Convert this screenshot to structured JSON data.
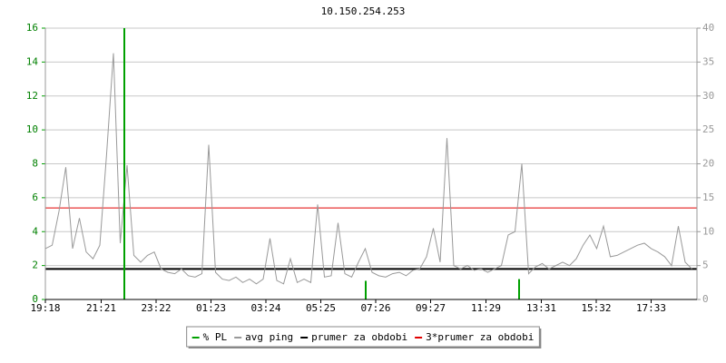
{
  "chart_data": {
    "type": "line",
    "title": "10.150.254.253",
    "xlim": [
      0,
      1436
    ],
    "xticks": [
      {
        "value": 0,
        "label": "19:18"
      },
      {
        "value": 123,
        "label": "21:21"
      },
      {
        "value": 244,
        "label": "23:22"
      },
      {
        "value": 365,
        "label": "01:23"
      },
      {
        "value": 486,
        "label": "03:24"
      },
      {
        "value": 607,
        "label": "05:25"
      },
      {
        "value": 728,
        "label": "07:26"
      },
      {
        "value": 849,
        "label": "09:27"
      },
      {
        "value": 971,
        "label": "11:29"
      },
      {
        "value": 1093,
        "label": "13:31"
      },
      {
        "value": 1214,
        "label": "15:32"
      },
      {
        "value": 1335,
        "label": "17:33"
      }
    ],
    "ylim": [
      0,
      16
    ],
    "yticks": [
      0,
      2,
      4,
      6,
      8,
      10,
      12,
      14,
      16
    ],
    "y2lim": [
      0,
      40
    ],
    "y2ticks": [
      0,
      5,
      10,
      15,
      20,
      25,
      30,
      35,
      40
    ],
    "grid": true,
    "series": [
      {
        "name": "% PL",
        "color": "#00a000",
        "axis": "y",
        "mark": "impulse",
        "x": [
          174,
          706,
          1044
        ],
        "values": [
          16,
          1.1,
          1.2
        ]
      },
      {
        "name": "avg ping",
        "color": "#999999",
        "axis": "y2",
        "mark": "line",
        "x": [
          0,
          15,
          30,
          45,
          60,
          75,
          90,
          105,
          120,
          135,
          150,
          165,
          180,
          195,
          210,
          225,
          240,
          255,
          270,
          285,
          300,
          315,
          330,
          345,
          360,
          375,
          390,
          405,
          420,
          435,
          450,
          465,
          480,
          495,
          510,
          525,
          540,
          555,
          570,
          585,
          600,
          615,
          630,
          645,
          660,
          675,
          690,
          705,
          720,
          735,
          750,
          765,
          780,
          795,
          810,
          825,
          840,
          855,
          870,
          885,
          900,
          915,
          930,
          945,
          960,
          975,
          990,
          1005,
          1020,
          1035,
          1050,
          1065,
          1080,
          1095,
          1110,
          1125,
          1140,
          1155,
          1170,
          1185,
          1200,
          1215,
          1230,
          1245,
          1260,
          1275,
          1290,
          1305,
          1320,
          1335,
          1350,
          1365,
          1380,
          1395,
          1410,
          1425
        ],
        "values": [
          7.5,
          8,
          13,
          19.5,
          7.5,
          12,
          7,
          6,
          8,
          21.5,
          36.3,
          8.3,
          19.8,
          6.5,
          5.5,
          6.5,
          7,
          4.5,
          4,
          3.8,
          4.5,
          3.5,
          3.3,
          3.8,
          22.8,
          4,
          3,
          2.8,
          3.3,
          2.5,
          3,
          2.3,
          3,
          9,
          2.8,
          2.3,
          6,
          2.5,
          3,
          2.5,
          14,
          3.3,
          3.5,
          11.3,
          3.8,
          3.3,
          5.5,
          7.5,
          4,
          3.5,
          3.3,
          3.8,
          4,
          3.5,
          4.3,
          4.5,
          6.3,
          10.5,
          5.5,
          23.8,
          5,
          4.5,
          5,
          4.3,
          4.5,
          4,
          4.5,
          5,
          9.5,
          10,
          20,
          3.8,
          4.8,
          5.3,
          4.5,
          5,
          5.5,
          5,
          6,
          8,
          9.5,
          7.5,
          10.8,
          6.3,
          6.5,
          7,
          7.5,
          8,
          8.3,
          7.5,
          7,
          6.3,
          5,
          10.8,
          5.5,
          4.5
        ]
      }
    ],
    "reference_lines": [
      {
        "name": "prumer za obdobi",
        "color": "#000000",
        "axis": "y2",
        "value": 4.5
      },
      {
        "name": "3*prumer za obdobi",
        "color": "#e00000",
        "axis": "y2",
        "value": 13.5
      }
    ]
  }
}
